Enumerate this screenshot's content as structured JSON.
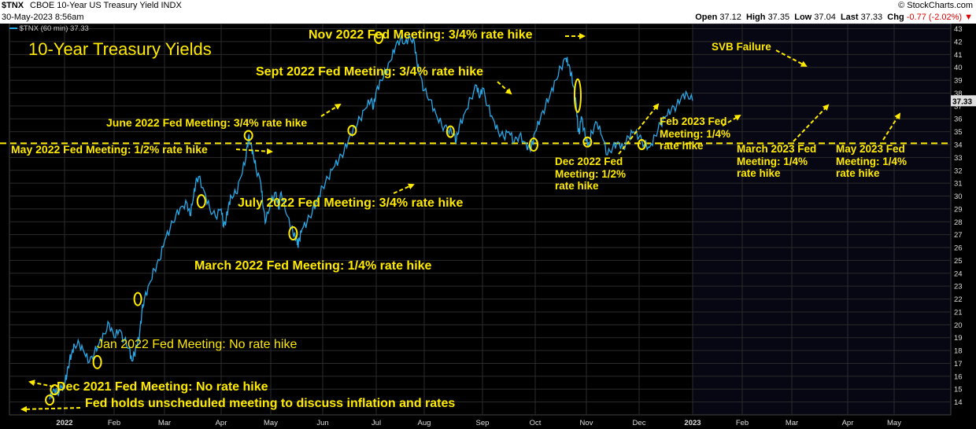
{
  "header": {
    "symbol": "$TNX",
    "name": "CBOE 10-Year US Treasury Yield INDX",
    "date": "30-May-2023 8:56am",
    "source": "© StockCharts.com",
    "open_label": "Open",
    "open": "37.12",
    "high_label": "High",
    "high": "37.35",
    "low_label": "Low",
    "low": "37.04",
    "last_label": "Last",
    "last": "37.33",
    "chg_label": "Chg",
    "chg": "-0.77 (-2.02%)"
  },
  "legend": "$TNX (60 min) 37.33",
  "colors": {
    "background": "#000000",
    "line": "#29a8e8",
    "annotation": "#ffea00",
    "grid": "#2b2b2b"
  },
  "chart_data": {
    "type": "line",
    "title": "10-Year Treasury Yields",
    "x_ticks": [
      "2022",
      "Feb",
      "Mar",
      "Apr",
      "May",
      "Jun",
      "Jul",
      "Aug",
      "Sep",
      "Oct",
      "Nov",
      "Dec",
      "2023",
      "Feb",
      "Mar",
      "Apr",
      "May"
    ],
    "y_ticks": [
      14,
      15,
      16,
      17,
      18,
      19,
      20,
      21,
      22,
      23,
      24,
      25,
      26,
      27,
      28,
      29,
      30,
      31,
      32,
      33,
      34,
      35,
      36,
      37,
      38,
      39,
      40,
      41,
      42,
      43
    ],
    "ylim": [
      13,
      43.4
    ],
    "last_value": "37.33",
    "reference_line": 34.1,
    "series": [
      {
        "name": "$TNX",
        "points": [
          [
            -0.3,
            14.2
          ],
          [
            -0.22,
            15.0
          ],
          [
            -0.15,
            14.7
          ],
          [
            -0.05,
            15.1
          ],
          [
            0.0,
            15.4
          ],
          [
            0.05,
            16.2
          ],
          [
            0.1,
            17.2
          ],
          [
            0.15,
            17.9
          ],
          [
            0.2,
            18.4
          ],
          [
            0.3,
            18.5
          ],
          [
            0.4,
            17.8
          ],
          [
            0.5,
            17.1
          ],
          [
            0.6,
            17.8
          ],
          [
            0.7,
            18.6
          ],
          [
            0.8,
            19.3
          ],
          [
            0.9,
            20.1
          ],
          [
            1.0,
            19.0
          ],
          [
            1.1,
            19.6
          ],
          [
            1.2,
            18.8
          ],
          [
            1.3,
            18.2
          ],
          [
            1.35,
            17.2
          ],
          [
            1.4,
            17.7
          ],
          [
            1.45,
            18.4
          ],
          [
            1.5,
            19.0
          ],
          [
            1.55,
            21.0
          ],
          [
            1.6,
            22.0
          ],
          [
            1.7,
            23.2
          ],
          [
            1.8,
            24.3
          ],
          [
            1.9,
            25.0
          ],
          [
            2.0,
            26.5
          ],
          [
            2.1,
            27.5
          ],
          [
            2.2,
            28.5
          ],
          [
            2.3,
            29.2
          ],
          [
            2.4,
            29.4
          ],
          [
            2.45,
            28.5
          ],
          [
            2.5,
            29.6
          ],
          [
            2.55,
            31.0
          ],
          [
            2.6,
            31.5
          ],
          [
            2.7,
            30.4
          ],
          [
            2.8,
            29.0
          ],
          [
            2.9,
            28.4
          ],
          [
            3.0,
            29.0
          ],
          [
            3.05,
            27.6
          ],
          [
            3.1,
            28.2
          ],
          [
            3.15,
            29.3
          ],
          [
            3.2,
            30.0
          ],
          [
            3.3,
            30.2
          ],
          [
            3.4,
            31.5
          ],
          [
            3.5,
            33.0
          ],
          [
            3.55,
            34.6
          ],
          [
            3.6,
            34.0
          ],
          [
            3.65,
            33.2
          ],
          [
            3.7,
            32.2
          ],
          [
            3.8,
            31.0
          ],
          [
            3.85,
            29.0
          ],
          [
            3.9,
            28.0
          ],
          [
            4.0,
            29.6
          ],
          [
            4.1,
            30.3
          ],
          [
            4.15,
            29.0
          ],
          [
            4.2,
            30.3
          ],
          [
            4.3,
            28.6
          ],
          [
            4.4,
            27.5
          ],
          [
            4.45,
            27.0
          ],
          [
            4.5,
            26.7
          ],
          [
            4.52,
            26.2
          ],
          [
            4.55,
            26.6
          ],
          [
            4.6,
            27.4
          ],
          [
            4.7,
            28.0
          ],
          [
            4.8,
            28.8
          ],
          [
            4.9,
            29.8
          ],
          [
            5.0,
            30.7
          ],
          [
            5.1,
            31.4
          ],
          [
            5.2,
            32.2
          ],
          [
            5.3,
            32.8
          ],
          [
            5.4,
            33.5
          ],
          [
            5.5,
            34.6
          ],
          [
            5.6,
            35.4
          ],
          [
            5.7,
            36.0
          ],
          [
            5.8,
            36.8
          ],
          [
            5.9,
            37.5
          ],
          [
            5.95,
            36.9
          ],
          [
            6.0,
            38.2
          ],
          [
            6.1,
            39.0
          ],
          [
            6.2,
            39.7
          ],
          [
            6.3,
            40.5
          ],
          [
            6.4,
            41.6
          ],
          [
            6.5,
            42.2
          ],
          [
            6.6,
            41.9
          ],
          [
            6.7,
            42.4
          ],
          [
            6.8,
            41.8
          ],
          [
            6.85,
            40.3
          ],
          [
            6.9,
            39.5
          ],
          [
            7.0,
            38.2
          ],
          [
            7.1,
            37.5
          ],
          [
            7.2,
            36.4
          ],
          [
            7.3,
            35.5
          ],
          [
            7.4,
            35.2
          ],
          [
            7.5,
            34.8
          ],
          [
            7.55,
            34.3
          ],
          [
            7.6,
            35.4
          ],
          [
            7.7,
            36.5
          ],
          [
            7.8,
            37.6
          ],
          [
            7.9,
            38.6
          ],
          [
            7.95,
            37.6
          ],
          [
            8.0,
            38.4
          ],
          [
            8.1,
            37.0
          ],
          [
            8.2,
            36.0
          ],
          [
            8.3,
            35.0
          ],
          [
            8.4,
            34.6
          ],
          [
            8.5,
            35.0
          ],
          [
            8.6,
            34.2
          ],
          [
            8.7,
            34.7
          ],
          [
            8.8,
            34.2
          ],
          [
            8.9,
            33.6
          ],
          [
            8.95,
            34.1
          ],
          [
            9.0,
            35.0
          ],
          [
            9.1,
            36.0
          ],
          [
            9.2,
            37.0
          ],
          [
            9.3,
            38.0
          ],
          [
            9.4,
            39.0
          ],
          [
            9.5,
            40.0
          ],
          [
            9.6,
            40.7
          ],
          [
            9.65,
            40.2
          ],
          [
            9.7,
            39.5
          ],
          [
            9.75,
            38.5
          ],
          [
            9.8,
            37.2
          ],
          [
            9.83,
            35.5
          ],
          [
            9.86,
            34.8
          ],
          [
            9.9,
            36.2
          ],
          [
            9.95,
            35.2
          ],
          [
            10.0,
            34.3
          ],
          [
            10.05,
            34.0
          ],
          [
            10.1,
            35.0
          ],
          [
            10.2,
            35.7
          ],
          [
            10.3,
            34.6
          ],
          [
            10.4,
            33.2
          ],
          [
            10.5,
            33.8
          ],
          [
            10.6,
            34.2
          ],
          [
            10.7,
            33.7
          ],
          [
            10.8,
            34.6
          ],
          [
            10.9,
            35.0
          ],
          [
            11.0,
            34.6
          ],
          [
            11.1,
            34.0
          ],
          [
            11.2,
            33.8
          ],
          [
            11.3,
            34.7
          ],
          [
            11.4,
            35.6
          ],
          [
            11.5,
            36.2
          ],
          [
            11.6,
            36.7
          ],
          [
            11.7,
            37.0
          ],
          [
            11.8,
            37.8
          ],
          [
            11.9,
            37.9
          ],
          [
            12.0,
            37.4
          ]
        ]
      }
    ]
  },
  "annotations": {
    "unscheduled": "Fed holds unscheduled meeting to discuss inflation and rates",
    "dec2021": "Dec 2021 Fed Meeting: No rate hike",
    "jan2022": "Jan 2022 Fed Meeting: No rate hike",
    "mar2022": "March 2022 Fed Meeting: 1/4% rate hike",
    "may2022": "May 2022 Fed Meeting: 1/2% rate hike",
    "jun2022": "June 2022 Fed Meeting: 3/4% rate hike",
    "jul2022": "July 2022 Fed Meeting: 3/4% rate hike",
    "sep2022": "Sept 2022 Fed Meeting: 3/4% rate hike",
    "nov2022": "Nov 2022 Fed Meeting: 3/4% rate hike",
    "dec2022": "Dec 2022 Fed Meeting: 1/2% rate hike",
    "feb2023": "Feb 2023 Fed Meeting: 1/4% rate hike",
    "svb": "SVB Failure",
    "mar2023": "March 2023 Fed Meeting: 1/4% rate hike",
    "may2023": "May 2023 Fed Meeting: 1/4% rate hike"
  }
}
